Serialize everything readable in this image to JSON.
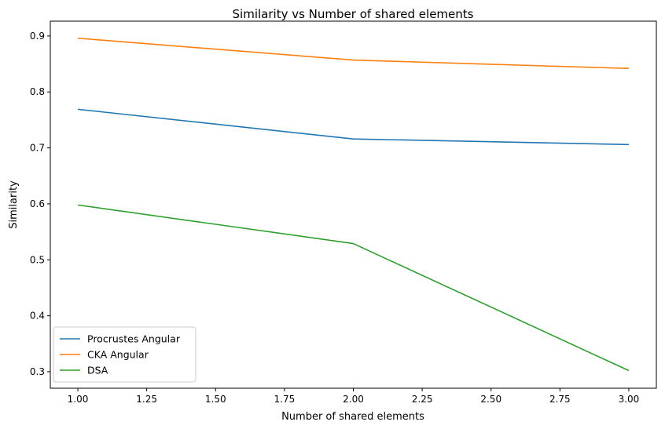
{
  "chart_data": {
    "type": "line",
    "title": "Similarity vs Number of shared elements",
    "xlabel": "Number of shared elements",
    "ylabel": "Similarity",
    "x": [
      1,
      2,
      3
    ],
    "xlim": [
      0.9,
      3.1
    ],
    "ylim": [
      0.2705,
      0.9265
    ],
    "xticks": [
      1.0,
      1.25,
      1.5,
      1.75,
      2.0,
      2.25,
      2.5,
      2.75,
      3.0
    ],
    "xtick_labels": [
      "1.00",
      "1.25",
      "1.50",
      "1.75",
      "2.00",
      "2.25",
      "2.50",
      "2.75",
      "3.00"
    ],
    "yticks": [
      0.3,
      0.4,
      0.5,
      0.6,
      0.7,
      0.8,
      0.9
    ],
    "ytick_labels": [
      "0.3",
      "0.4",
      "0.5",
      "0.6",
      "0.7",
      "0.8",
      "0.9"
    ],
    "grid": false,
    "legend": "lower-left",
    "series": [
      {
        "name": "Procrustes Angular",
        "values": [
          0.769,
          0.716,
          0.706
        ],
        "color": "#1f77b4"
      },
      {
        "name": "CKA Angular",
        "values": [
          0.896,
          0.857,
          0.842
        ],
        "color": "#ff7f0e"
      },
      {
        "name": "DSA",
        "values": [
          0.598,
          0.529,
          0.302
        ],
        "color": "#2ca02c"
      }
    ]
  }
}
